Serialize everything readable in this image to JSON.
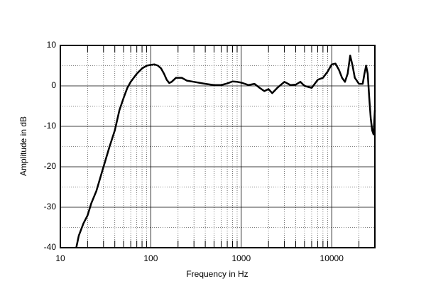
{
  "chart_data": {
    "type": "line",
    "x_label": "Frequency in Hz",
    "y_label": "Amplitude in dB",
    "log_x": true,
    "grid": true,
    "color": "#000000",
    "xlim": [
      10,
      30000
    ],
    "ylim": [
      -40,
      10
    ],
    "xticks": [
      10,
      100,
      1000,
      10000
    ],
    "yticks": [
      -40,
      -30,
      -20,
      -10,
      0,
      10
    ],
    "x_minor_grid": [
      20,
      30,
      40,
      50,
      60,
      70,
      80,
      90,
      200,
      300,
      400,
      500,
      600,
      700,
      800,
      900,
      2000,
      3000,
      4000,
      5000,
      6000,
      7000,
      8000,
      9000,
      20000
    ],
    "y_minor_grid": [
      -35,
      -25,
      -15,
      -5,
      5
    ],
    "x": [
      15,
      16,
      18,
      20,
      22,
      25,
      30,
      35,
      40,
      45,
      50,
      55,
      60,
      70,
      80,
      90,
      100,
      110,
      120,
      130,
      140,
      150,
      160,
      170,
      190,
      220,
      250,
      300,
      400,
      500,
      600,
      700,
      800,
      900,
      1000,
      1200,
      1400,
      1600,
      1800,
      2000,
      2200,
      2500,
      3000,
      3500,
      4000,
      4500,
      5000,
      6000,
      7000,
      8000,
      9000,
      10000,
      11000,
      12000,
      13000,
      14000,
      15000,
      16000,
      17000,
      18000,
      20000,
      22000,
      23000,
      24000,
      25000,
      26000,
      27000,
      28000,
      29000,
      30000
    ],
    "values": [
      -40,
      -37,
      -34,
      -32,
      -29,
      -26,
      -20,
      -15,
      -11,
      -6,
      -3,
      -0.5,
      1,
      3,
      4.3,
      5,
      5.2,
      5.3,
      5,
      4.3,
      3,
      1.5,
      0.7,
      1,
      2,
      2,
      1.3,
      1,
      0.5,
      0.2,
      0.2,
      0.6,
      1.1,
      1,
      0.8,
      0.2,
      0.5,
      -0.5,
      -1.3,
      -0.8,
      -1.8,
      -0.5,
      1,
      0.2,
      0.3,
      1,
      0,
      -0.5,
      1.5,
      2,
      3.5,
      5.3,
      5.5,
      4,
      2,
      1,
      3,
      7.5,
      5,
      2,
      0.5,
      0.5,
      3,
      5,
      3,
      -3,
      -8,
      -11,
      -12,
      -6
    ]
  }
}
